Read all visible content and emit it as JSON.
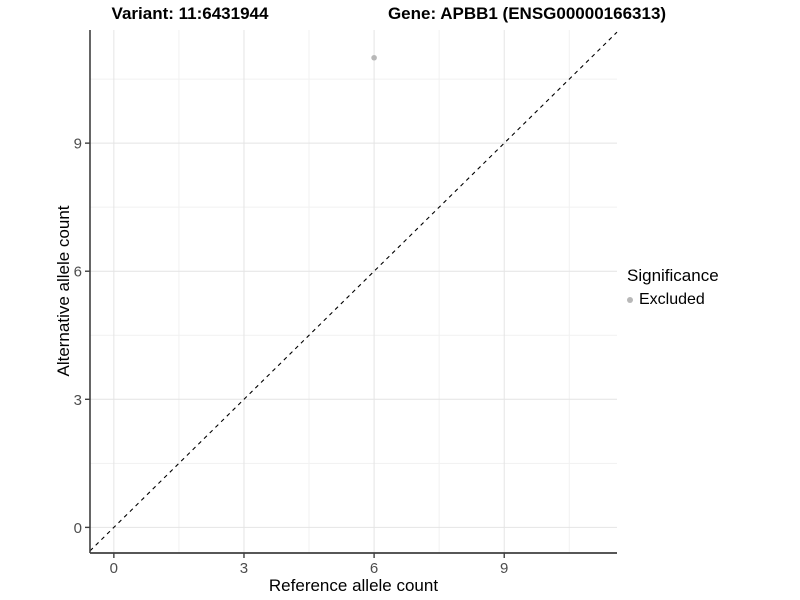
{
  "header": {
    "variant_title": "Variant: 11:6431944",
    "gene_title": "Gene: APBB1 (ENSG00000166313)"
  },
  "legend": {
    "title": "Significance",
    "items": [
      {
        "label": "Excluded",
        "color": "#b8b8b8"
      }
    ]
  },
  "colors": {
    "point": "#b8b8b8",
    "axis_line": "#3f3f3f",
    "tick_label": "#4d4d4d",
    "grid_major": "#e4e4e4",
    "grid_minor": "#f1f1f1",
    "reference_line": "#000000",
    "background": "#ffffff"
  },
  "chart_data": {
    "type": "scatter",
    "title": "Variant: 11:6431944 | Gene: APBB1 (ENSG00000166313)",
    "xlabel": "Reference allele count",
    "ylabel": "Alternative allele count",
    "x_ticks": [
      0,
      3,
      6,
      9
    ],
    "y_ticks": [
      0,
      3,
      6,
      9
    ],
    "xlim": [
      -0.55,
      11.6
    ],
    "ylim": [
      -0.6,
      11.65
    ],
    "grid": "major+minor",
    "legend_position": "right",
    "series": [
      {
        "name": "Excluded",
        "color": "#b8b8b8",
        "points": [
          {
            "x": 6,
            "y": 11
          }
        ]
      }
    ],
    "reference_line": {
      "type": "identity y=x",
      "style": "dashed",
      "color": "#000000"
    }
  }
}
